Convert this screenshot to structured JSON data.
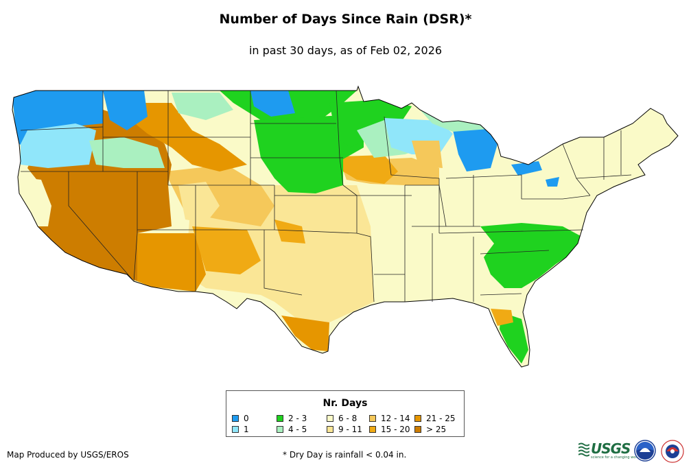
{
  "title": "Number of Days Since Rain (DSR)*",
  "subtitle": "in past 30 days, as of Feb 02, 2026",
  "legend": {
    "title": "Nr. Days",
    "items": [
      {
        "label": "0",
        "color": "#1e9bf0"
      },
      {
        "label": "1",
        "color": "#90e6fa"
      },
      {
        "label": "2 - 3",
        "color": "#1fd21f"
      },
      {
        "label": "4 - 5",
        "color": "#aaf0c0"
      },
      {
        "label": "6 - 8",
        "color": "#fafac8"
      },
      {
        "label": "9 - 11",
        "color": "#fae696"
      },
      {
        "label": "12 - 14",
        "color": "#f5c85a"
      },
      {
        "label": "15 - 20",
        "color": "#f0aa14"
      },
      {
        "label": "21 - 25",
        "color": "#e69600"
      },
      {
        "label": "> 25",
        "color": "#cd7d00"
      }
    ]
  },
  "footer": {
    "credit": "Map Produced by USGS/EROS",
    "note": "* Dry Day is rainfall < 0.04 in."
  },
  "logos": {
    "usgs": "USGS",
    "usgs_tagline": "science for a changing world",
    "noaa": "noaa-logo",
    "nws": "nws-logo"
  }
}
